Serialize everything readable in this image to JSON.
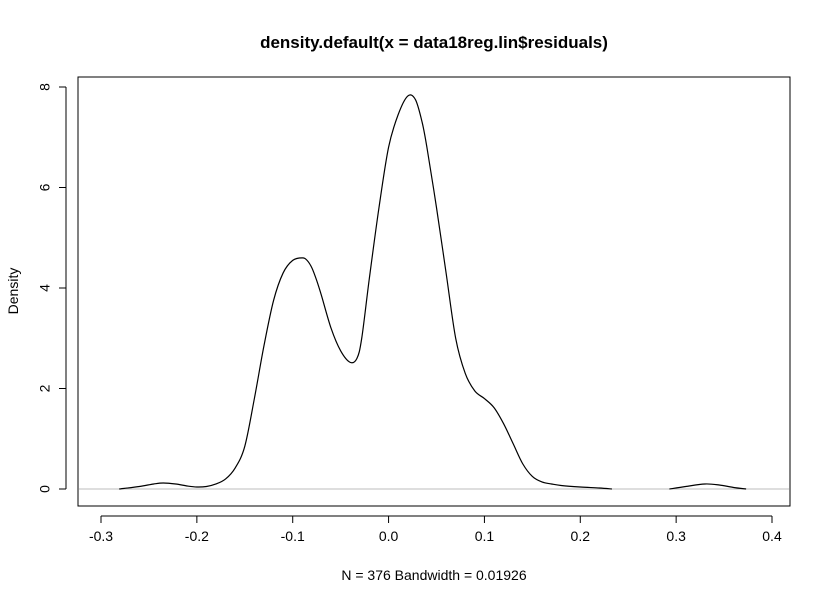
{
  "chart_data": {
    "type": "line",
    "title": "density.default(x = data18reg.lin$residuals)",
    "xlabel": "N = 376   Bandwidth = 0.01926",
    "ylabel": "Density",
    "xlim": [
      -0.3,
      0.4
    ],
    "ylim": [
      0,
      8
    ],
    "x_ticks": [
      "-0.3",
      "-0.2",
      "-0.1",
      "0.0",
      "0.1",
      "0.2",
      "0.3",
      "0.4"
    ],
    "y_ticks": [
      "0",
      "2",
      "4",
      "6",
      "8"
    ],
    "grid": false,
    "legend": "none",
    "reference_line": {
      "y": 0,
      "color": "#bebebe"
    },
    "series": [
      {
        "color": "#000000",
        "x": [
          -0.281,
          -0.26,
          -0.245,
          -0.235,
          -0.222,
          -0.21,
          -0.2,
          -0.19,
          -0.18,
          -0.17,
          -0.16,
          -0.15,
          -0.14,
          -0.13,
          -0.12,
          -0.11,
          -0.1,
          -0.09,
          -0.085,
          -0.08,
          -0.075,
          -0.07,
          -0.06,
          -0.05,
          -0.04,
          -0.033,
          -0.028,
          -0.02,
          -0.01,
          0.0,
          0.01,
          0.02,
          0.028,
          0.035,
          0.04,
          0.05,
          0.06,
          0.07,
          0.08,
          0.09,
          0.1,
          0.11,
          0.12,
          0.13,
          0.14,
          0.15,
          0.16,
          0.17,
          0.18,
          0.2,
          0.22,
          0.233
        ],
        "y": [
          0.0,
          0.05,
          0.1,
          0.12,
          0.1,
          0.06,
          0.04,
          0.05,
          0.1,
          0.2,
          0.42,
          0.85,
          1.8,
          2.85,
          3.75,
          4.3,
          4.55,
          4.6,
          4.55,
          4.4,
          4.15,
          3.85,
          3.2,
          2.75,
          2.52,
          2.6,
          3.0,
          4.2,
          5.6,
          6.8,
          7.45,
          7.82,
          7.75,
          7.3,
          6.8,
          5.6,
          4.3,
          3.0,
          2.3,
          1.95,
          1.8,
          1.62,
          1.3,
          0.9,
          0.5,
          0.25,
          0.14,
          0.1,
          0.07,
          0.04,
          0.02,
          0.0
        ]
      },
      {
        "color": "#000000",
        "x": [
          0.293,
          0.31,
          0.33,
          0.345,
          0.36,
          0.373
        ],
        "y": [
          0.0,
          0.05,
          0.1,
          0.08,
          0.03,
          0.0
        ]
      }
    ]
  }
}
